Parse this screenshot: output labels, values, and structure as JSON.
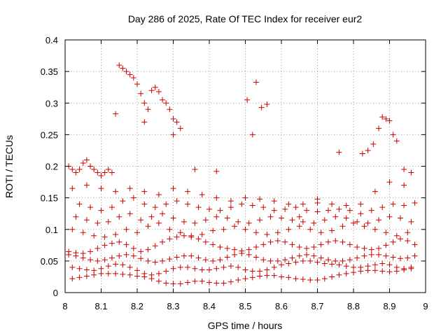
{
  "chart_data": {
    "type": "scatter",
    "title": "Day 286 of 2025, Rate Of TEC Index for receiver eur2",
    "xlabel": "GPS time / hours",
    "ylabel": "ROTI / TECUs",
    "xlim": [
      8,
      9
    ],
    "ylim": [
      0,
      0.4
    ],
    "xticks": [
      "8",
      "8.1",
      "8.2",
      "8.3",
      "8.4",
      "8.5",
      "8.6",
      "8.7",
      "8.8",
      "8.9",
      "9"
    ],
    "yticks": [
      "0",
      "0.05",
      "0.1",
      "0.15",
      "0.2",
      "0.25",
      "0.3",
      "0.35",
      "0.4"
    ],
    "grid": true,
    "marker": "plus",
    "color": "#cc0000",
    "series": [
      {
        "x": [
          8.02,
          8.04,
          8.06,
          8.08,
          8.1,
          8.12,
          8.14,
          8.16,
          8.18,
          8.2,
          8.22,
          8.24,
          8.26,
          8.28,
          8.3,
          8.32,
          8.34,
          8.36,
          8.38,
          8.4,
          8.42,
          8.44,
          8.46,
          8.48,
          8.5,
          8.52,
          8.54,
          8.56,
          8.58,
          8.6,
          8.62,
          8.64,
          8.66,
          8.68,
          8.7,
          8.72,
          8.74,
          8.76,
          8.78,
          8.8,
          8.82,
          8.84,
          8.86,
          8.88,
          8.9,
          8.92,
          8.94,
          8.96,
          8.02,
          8.04,
          8.06,
          8.08,
          8.1,
          8.12,
          8.14,
          8.16,
          8.18,
          8.2,
          8.22,
          8.24,
          8.26,
          8.28,
          8.3,
          8.32,
          8.34,
          8.36,
          8.38,
          8.4,
          8.42,
          8.44,
          8.46,
          8.48,
          8.5,
          8.52,
          8.54,
          8.56,
          8.58,
          8.6,
          8.62,
          8.64,
          8.66,
          8.68,
          8.7,
          8.72,
          8.74,
          8.76,
          8.78,
          8.8,
          8.82,
          8.84,
          8.86,
          8.88,
          8.9,
          8.92,
          8.94,
          8.96,
          8.01,
          8.03,
          8.05,
          8.07,
          8.09,
          8.11,
          8.13,
          8.15,
          8.17,
          8.19,
          8.21,
          8.23,
          8.25,
          8.27,
          8.29,
          8.31,
          8.33,
          8.35,
          8.37,
          8.39,
          8.41,
          8.43,
          8.45,
          8.47,
          8.49,
          8.51,
          8.53,
          8.55,
          8.57,
          8.59,
          8.61,
          8.63,
          8.65,
          8.67,
          8.69,
          8.71,
          8.73,
          8.75,
          8.77,
          8.79,
          8.81,
          8.83,
          8.85,
          8.87,
          8.89,
          8.91,
          8.93,
          8.95,
          8.97,
          8.01,
          8.03,
          8.05,
          8.07,
          8.09,
          8.11,
          8.13,
          8.15,
          8.17,
          8.19,
          8.21,
          8.23,
          8.25,
          8.27,
          8.29,
          8.31,
          8.33,
          8.35,
          8.37,
          8.39,
          8.41,
          8.43,
          8.45,
          8.47,
          8.49,
          8.51,
          8.53,
          8.55,
          8.57,
          8.59,
          8.61,
          8.63,
          8.65,
          8.67,
          8.69,
          8.71,
          8.73,
          8.75,
          8.77,
          8.79,
          8.81,
          8.83,
          8.85,
          8.87,
          8.89,
          8.91,
          8.93,
          8.95,
          8.97,
          8.02,
          8.05,
          8.08,
          8.11,
          8.14,
          8.17,
          8.2,
          8.23,
          8.26,
          8.29,
          8.32,
          8.35,
          8.38,
          8.41,
          8.44,
          8.47,
          8.5,
          8.53,
          8.56,
          8.59,
          8.62,
          8.65,
          8.68,
          8.71,
          8.74,
          8.77,
          8.8,
          8.83,
          8.86,
          8.89,
          8.92,
          8.95,
          8.03,
          8.06,
          8.09,
          8.12,
          8.15,
          8.18,
          8.21,
          8.24,
          8.27,
          8.3,
          8.33,
          8.36,
          8.39,
          8.42,
          8.45,
          8.48,
          8.51,
          8.54,
          8.57,
          8.6,
          8.63,
          8.66,
          8.69,
          8.72,
          8.75,
          8.78,
          8.81,
          8.84,
          8.87,
          8.9,
          8.93,
          8.96,
          8.04,
          8.07,
          8.1,
          8.13,
          8.16,
          8.19,
          8.22,
          8.25,
          8.28,
          8.31,
          8.34,
          8.37,
          8.4,
          8.43,
          8.46,
          8.49,
          8.52,
          8.55,
          8.58,
          8.61,
          8.64,
          8.67,
          8.7,
          8.73,
          8.76,
          8.79,
          8.82,
          8.85,
          8.88,
          8.91,
          8.94,
          8.97,
          8.02,
          8.06,
          8.1,
          8.14,
          8.18,
          8.22,
          8.26,
          8.3,
          8.34,
          8.38,
          8.42,
          8.46,
          8.5,
          8.54,
          8.58,
          8.62,
          8.66,
          8.7,
          8.74,
          8.78,
          8.82,
          8.86,
          8.9,
          8.94,
          8.01,
          8.02,
          8.03,
          8.04,
          8.05,
          8.06,
          8.07,
          8.08,
          8.09,
          8.1,
          8.11,
          8.12,
          8.13,
          8.15,
          8.16,
          8.17,
          8.18,
          8.19,
          8.2,
          8.21,
          8.22,
          8.23,
          8.24,
          8.25,
          8.26,
          8.27,
          8.28,
          8.29,
          8.3,
          8.31,
          8.32,
          8.53,
          8.545,
          8.56,
          8.505,
          8.52,
          8.825,
          8.84,
          8.855,
          8.87,
          8.88,
          8.89,
          8.9,
          8.91,
          8.92,
          8.94,
          8.96,
          8.76,
          8.14,
          8.22,
          8.3,
          8.65,
          8.7,
          8.36,
          8.42
        ],
        "y": [
          0.022,
          0.024,
          0.026,
          0.028,
          0.03,
          0.03,
          0.03,
          0.029,
          0.028,
          0.026,
          0.025,
          0.022,
          0.018,
          0.015,
          0.014,
          0.014,
          0.016,
          0.018,
          0.018,
          0.016,
          0.015,
          0.015,
          0.017,
          0.02,
          0.022,
          0.024,
          0.026,
          0.027,
          0.027,
          0.025,
          0.024,
          0.022,
          0.021,
          0.02,
          0.02,
          0.022,
          0.025,
          0.028,
          0.03,
          0.032,
          0.034,
          0.035,
          0.035,
          0.034,
          0.033,
          0.034,
          0.036,
          0.038,
          0.04,
          0.038,
          0.036,
          0.035,
          0.038,
          0.042,
          0.045,
          0.044,
          0.04,
          0.035,
          0.03,
          0.028,
          0.03,
          0.034,
          0.038,
          0.04,
          0.04,
          0.038,
          0.036,
          0.036,
          0.038,
          0.04,
          0.042,
          0.04,
          0.036,
          0.034,
          0.034,
          0.036,
          0.04,
          0.044,
          0.046,
          0.048,
          0.05,
          0.05,
          0.048,
          0.046,
          0.045,
          0.044,
          0.042,
          0.04,
          0.04,
          0.042,
          0.044,
          0.046,
          0.044,
          0.04,
          0.038,
          0.04,
          0.06,
          0.058,
          0.055,
          0.052,
          0.05,
          0.052,
          0.055,
          0.058,
          0.06,
          0.058,
          0.054,
          0.05,
          0.048,
          0.05,
          0.053,
          0.056,
          0.058,
          0.058,
          0.055,
          0.052,
          0.05,
          0.052,
          0.056,
          0.06,
          0.062,
          0.06,
          0.056,
          0.052,
          0.05,
          0.05,
          0.052,
          0.055,
          0.058,
          0.06,
          0.058,
          0.055,
          0.052,
          0.05,
          0.05,
          0.052,
          0.055,
          0.058,
          0.06,
          0.06,
          0.058,
          0.056,
          0.054,
          0.055,
          0.058,
          0.065,
          0.063,
          0.062,
          0.065,
          0.07,
          0.075,
          0.078,
          0.08,
          0.076,
          0.07,
          0.065,
          0.068,
          0.074,
          0.08,
          0.085,
          0.088,
          0.09,
          0.088,
          0.085,
          0.08,
          0.076,
          0.072,
          0.07,
          0.068,
          0.066,
          0.068,
          0.072,
          0.076,
          0.08,
          0.082,
          0.08,
          0.076,
          0.072,
          0.07,
          0.072,
          0.076,
          0.08,
          0.082,
          0.08,
          0.076,
          0.072,
          0.07,
          0.068,
          0.07,
          0.075,
          0.08,
          0.085,
          0.082,
          0.076,
          0.1,
          0.095,
          0.09,
          0.088,
          0.092,
          0.1,
          0.095,
          0.105,
          0.11,
          0.1,
          0.095,
          0.09,
          0.092,
          0.098,
          0.1,
          0.105,
          0.1,
          0.095,
          0.092,
          0.095,
          0.1,
          0.105,
          0.1,
          0.095,
          0.098,
          0.105,
          0.11,
          0.105,
          0.1,
          0.095,
          0.09,
          0.095,
          0.12,
          0.115,
          0.11,
          0.112,
          0.12,
          0.125,
          0.115,
          0.12,
          0.125,
          0.118,
          0.112,
          0.11,
          0.115,
          0.12,
          0.118,
          0.112,
          0.11,
          0.115,
          0.12,
          0.118,
          0.115,
          0.112,
          0.11,
          0.115,
          0.12,
          0.118,
          0.112,
          0.11,
          0.115,
          0.12,
          0.118,
          0.112,
          0.14,
          0.135,
          0.13,
          0.135,
          0.145,
          0.15,
          0.14,
          0.135,
          0.14,
          0.145,
          0.14,
          0.135,
          0.132,
          0.13,
          0.135,
          0.14,
          0.138,
          0.135,
          0.13,
          0.132,
          0.135,
          0.13,
          0.128,
          0.13,
          0.132,
          0.13,
          0.125,
          0.13,
          0.135,
          0.14,
          0.138,
          0.142,
          0.165,
          0.17,
          0.165,
          0.16,
          0.165,
          0.16,
          0.155,
          0.165,
          0.16,
          0.155,
          0.15,
          0.145,
          0.15,
          0.148,
          0.145,
          0.14,
          0.14,
          0.142,
          0.14,
          0.138,
          0.14,
          0.16,
          0.175,
          0.17,
          0.2,
          0.195,
          0.19,
          0.195,
          0.205,
          0.21,
          0.2,
          0.195,
          0.19,
          0.185,
          0.19,
          0.195,
          0.19,
          0.36,
          0.355,
          0.35,
          0.345,
          0.34,
          0.33,
          0.315,
          0.3,
          0.29,
          0.32,
          0.325,
          0.318,
          0.305,
          0.3,
          0.29,
          0.275,
          0.27,
          0.26,
          0.333,
          0.293,
          0.298,
          0.305,
          0.25,
          0.22,
          0.225,
          0.235,
          0.26,
          0.278,
          0.275,
          0.272,
          0.25,
          0.24,
          0.195,
          0.19,
          0.222,
          0.283,
          0.27,
          0.25,
          0.12,
          0.148,
          0.195,
          0.192
        ]
      }
    ]
  }
}
